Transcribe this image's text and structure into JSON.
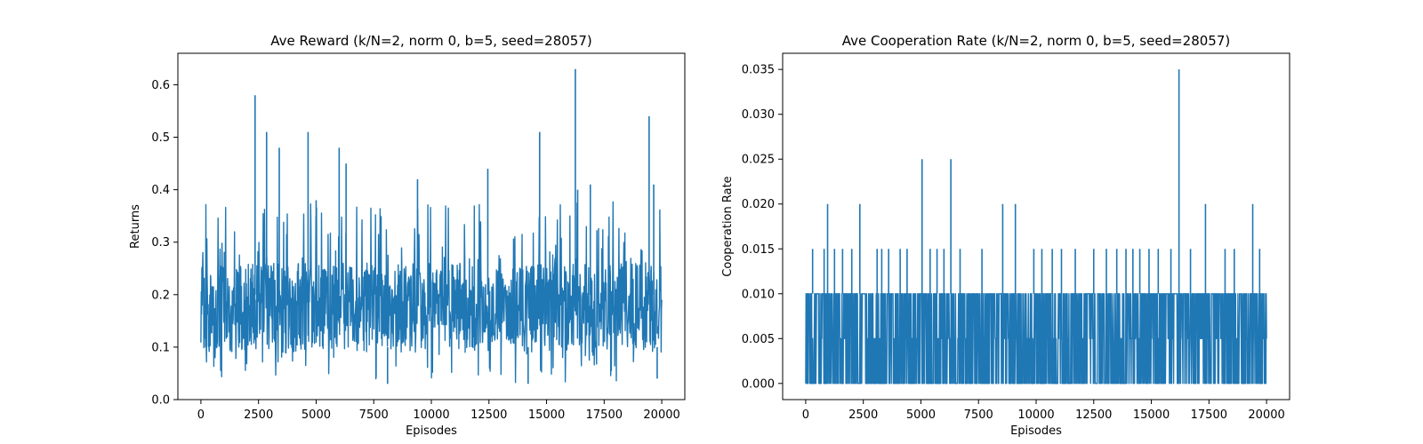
{
  "chart_data": [
    {
      "type": "line",
      "title": "Ave Reward (k/N=2, norm 0, b=5, seed=28057)",
      "xlabel": "Episodes",
      "ylabel": "Returns",
      "xlim": [
        -1000,
        21000
      ],
      "ylim": [
        0.0,
        0.66
      ],
      "xticks": [
        0,
        2500,
        5000,
        7500,
        10000,
        12500,
        15000,
        17500,
        20000
      ],
      "xtick_labels": [
        "0",
        "2500",
        "5000",
        "7500",
        "10000",
        "12500",
        "15000",
        "17500",
        "20000"
      ],
      "yticks": [
        0.0,
        0.1,
        0.2,
        0.3,
        0.4,
        0.5,
        0.6
      ],
      "ytick_labels": [
        "0.0",
        "0.1",
        "0.2",
        "0.3",
        "0.4",
        "0.5",
        "0.6"
      ],
      "grid": false,
      "color": "#1f77b4",
      "x_range": [
        0,
        20000
      ],
      "band": {
        "low": 0.09,
        "high": 0.26
      },
      "typical_range": [
        0.03,
        0.4
      ],
      "peaks": [
        {
          "x": 2350,
          "y": 0.58
        },
        {
          "x": 2850,
          "y": 0.51
        },
        {
          "x": 3400,
          "y": 0.48
        },
        {
          "x": 4650,
          "y": 0.51
        },
        {
          "x": 5000,
          "y": 0.38
        },
        {
          "x": 6000,
          "y": 0.48
        },
        {
          "x": 6300,
          "y": 0.45
        },
        {
          "x": 9400,
          "y": 0.42
        },
        {
          "x": 12450,
          "y": 0.44
        },
        {
          "x": 14700,
          "y": 0.51
        },
        {
          "x": 16250,
          "y": 0.63
        },
        {
          "x": 16350,
          "y": 0.4
        },
        {
          "x": 16900,
          "y": 0.41
        },
        {
          "x": 19450,
          "y": 0.54
        },
        {
          "x": 19650,
          "y": 0.41
        }
      ],
      "troughs": [
        {
          "x": 8100,
          "y": 0.03
        },
        {
          "x": 14200,
          "y": 0.03
        },
        {
          "x": 19800,
          "y": 0.04
        }
      ]
    },
    {
      "type": "line",
      "title": "Ave Cooperation Rate (k/N=2, norm 0, b=5, seed=28057)",
      "xlabel": "Episodes",
      "ylabel": "Cooperation Rate",
      "xlim": [
        -1000,
        21000
      ],
      "ylim": [
        -0.0018,
        0.0368
      ],
      "xticks": [
        0,
        2500,
        5000,
        7500,
        10000,
        12500,
        15000,
        17500,
        20000
      ],
      "xtick_labels": [
        "0",
        "2500",
        "5000",
        "7500",
        "10000",
        "12500",
        "15000",
        "17500",
        "20000"
      ],
      "yticks": [
        0.0,
        0.005,
        0.01,
        0.015,
        0.02,
        0.025,
        0.03,
        0.035
      ],
      "ytick_labels": [
        "0.000",
        "0.005",
        "0.010",
        "0.015",
        "0.020",
        "0.025",
        "0.030",
        "0.035"
      ],
      "grid": false,
      "color": "#1f77b4",
      "x_range": [
        0,
        20000
      ],
      "band": {
        "low": 0.0,
        "high": 0.01
      },
      "levels": [
        0.0,
        0.005,
        0.01
      ],
      "peaks": [
        {
          "x": 950,
          "y": 0.02
        },
        {
          "x": 2350,
          "y": 0.02
        },
        {
          "x": 5050,
          "y": 0.025
        },
        {
          "x": 6300,
          "y": 0.025
        },
        {
          "x": 8550,
          "y": 0.02
        },
        {
          "x": 9100,
          "y": 0.02
        },
        {
          "x": 16200,
          "y": 0.035
        },
        {
          "x": 17350,
          "y": 0.02
        },
        {
          "x": 19400,
          "y": 0.02
        }
      ],
      "secondary_peaks": [
        {
          "x": 300,
          "y": 0.015
        },
        {
          "x": 800,
          "y": 0.015
        },
        {
          "x": 1250,
          "y": 0.015
        },
        {
          "x": 1600,
          "y": 0.015
        },
        {
          "x": 2000,
          "y": 0.015
        },
        {
          "x": 3100,
          "y": 0.015
        },
        {
          "x": 3300,
          "y": 0.015
        },
        {
          "x": 3600,
          "y": 0.015
        },
        {
          "x": 4100,
          "y": 0.015
        },
        {
          "x": 4400,
          "y": 0.015
        },
        {
          "x": 5400,
          "y": 0.015
        },
        {
          "x": 5700,
          "y": 0.015
        },
        {
          "x": 6000,
          "y": 0.015
        },
        {
          "x": 6700,
          "y": 0.015
        },
        {
          "x": 7650,
          "y": 0.015
        },
        {
          "x": 9900,
          "y": 0.015
        },
        {
          "x": 10250,
          "y": 0.015
        },
        {
          "x": 10700,
          "y": 0.015
        },
        {
          "x": 11100,
          "y": 0.015
        },
        {
          "x": 11700,
          "y": 0.015
        },
        {
          "x": 12500,
          "y": 0.015
        },
        {
          "x": 13050,
          "y": 0.015
        },
        {
          "x": 13500,
          "y": 0.015
        },
        {
          "x": 13900,
          "y": 0.015
        },
        {
          "x": 14200,
          "y": 0.015
        },
        {
          "x": 14500,
          "y": 0.015
        },
        {
          "x": 14900,
          "y": 0.015
        },
        {
          "x": 15300,
          "y": 0.015
        },
        {
          "x": 15850,
          "y": 0.015
        },
        {
          "x": 16700,
          "y": 0.015
        },
        {
          "x": 18200,
          "y": 0.015
        },
        {
          "x": 18600,
          "y": 0.015
        },
        {
          "x": 19700,
          "y": 0.015
        }
      ]
    }
  ]
}
